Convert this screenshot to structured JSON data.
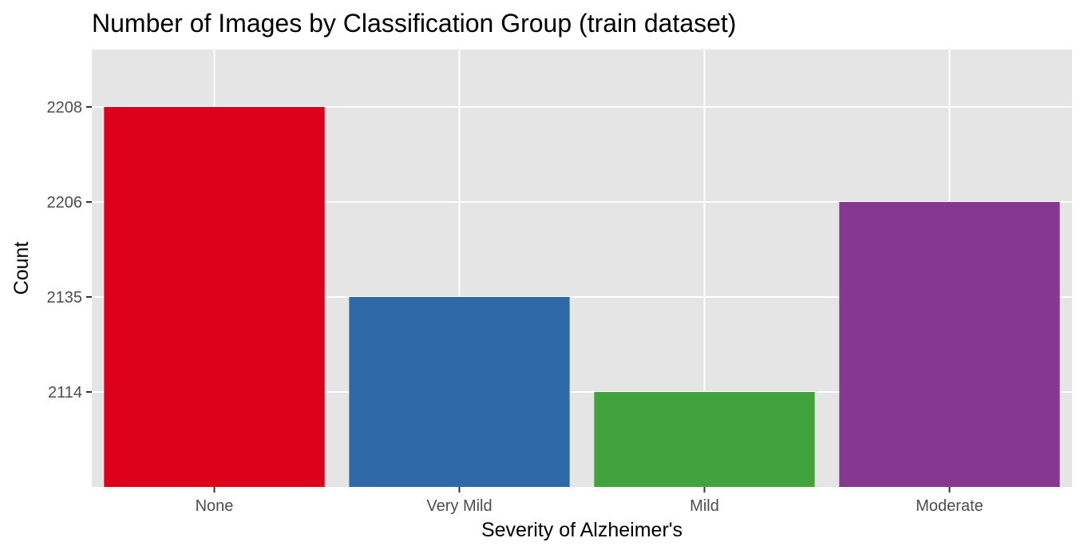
{
  "chart_data": {
    "type": "bar",
    "title": "Number of Images by Classification Group (train dataset)",
    "xlabel": "Severity of Alzheimer's",
    "ylabel": "Count",
    "categories": [
      "None",
      "Very Mild",
      "Mild",
      "Moderate"
    ],
    "values": [
      2208,
      2135,
      2114,
      2206
    ],
    "y_axis_note": "categorical-like y axis with ticks in printed order",
    "y_ticks": [
      "2114",
      "2135",
      "2206",
      "2208"
    ],
    "colors": [
      "#dc001b",
      "#2e6aa8",
      "#41a33b",
      "#863891"
    ],
    "panel_background": "#e5e5e5",
    "gridline_color": "#ffffff",
    "grid": true,
    "legend": "none"
  }
}
